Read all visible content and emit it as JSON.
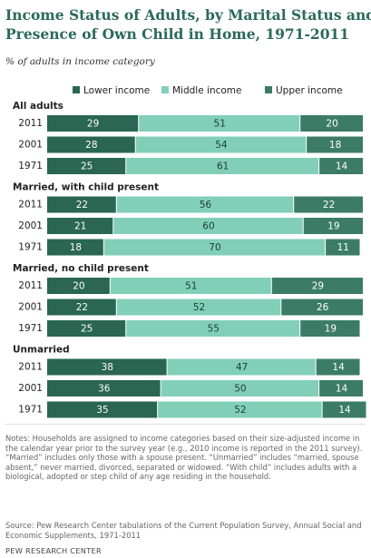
{
  "title": [
    "Income Status of Adults, by Marital Status and",
    "Presence of Own Child in Home, 1971-2011"
  ],
  "subtitle": "% of adults in income category",
  "notes": "Notes: Households are assigned to income categories based on their size-adjusted income in the calendar year prior to the survey year (e.g., 2010 income is reported in the 2011 survey). “Married” includes only those with a spouse present. “Unmarried” includes “married, spouse absent,” never married, divorced, separated or widowed. “With child” includes adults with a biological, adopted or step child of any age residing in the household.",
  "source": "Source: Pew Research Center tabulations of the Current Population Survey, Annual Social and Economic Supplements, 1971-2011",
  "brand": "PEW RESEARCH CENTER",
  "chart_data": {
    "type": "stacked-bar-horizontal",
    "xlim": [
      0,
      100
    ],
    "groups": [
      {
        "name": "All adults",
        "categories": [
          "2011",
          "2001",
          "1971"
        ]
      },
      {
        "name": "Married, with child present",
        "categories": [
          "2011",
          "2001",
          "1971"
        ]
      },
      {
        "name": "Married, no child present",
        "categories": [
          "2011",
          "2001",
          "1971"
        ]
      },
      {
        "name": "Unmarried",
        "categories": [
          "2011",
          "2001",
          "1971"
        ]
      }
    ],
    "series": [
      {
        "name": "Lower income",
        "color": "#2a6651",
        "values": [
          29,
          28,
          25,
          22,
          21,
          18,
          20,
          22,
          25,
          38,
          36,
          35
        ]
      },
      {
        "name": "Middle income",
        "color": "#82cfb8",
        "values": [
          51,
          54,
          61,
          56,
          60,
          70,
          51,
          52,
          55,
          47,
          50,
          52
        ]
      },
      {
        "name": "Upper income",
        "color": "#3c7c66",
        "values": [
          20,
          18,
          14,
          22,
          19,
          11,
          29,
          26,
          19,
          14,
          14,
          14
        ]
      }
    ]
  }
}
